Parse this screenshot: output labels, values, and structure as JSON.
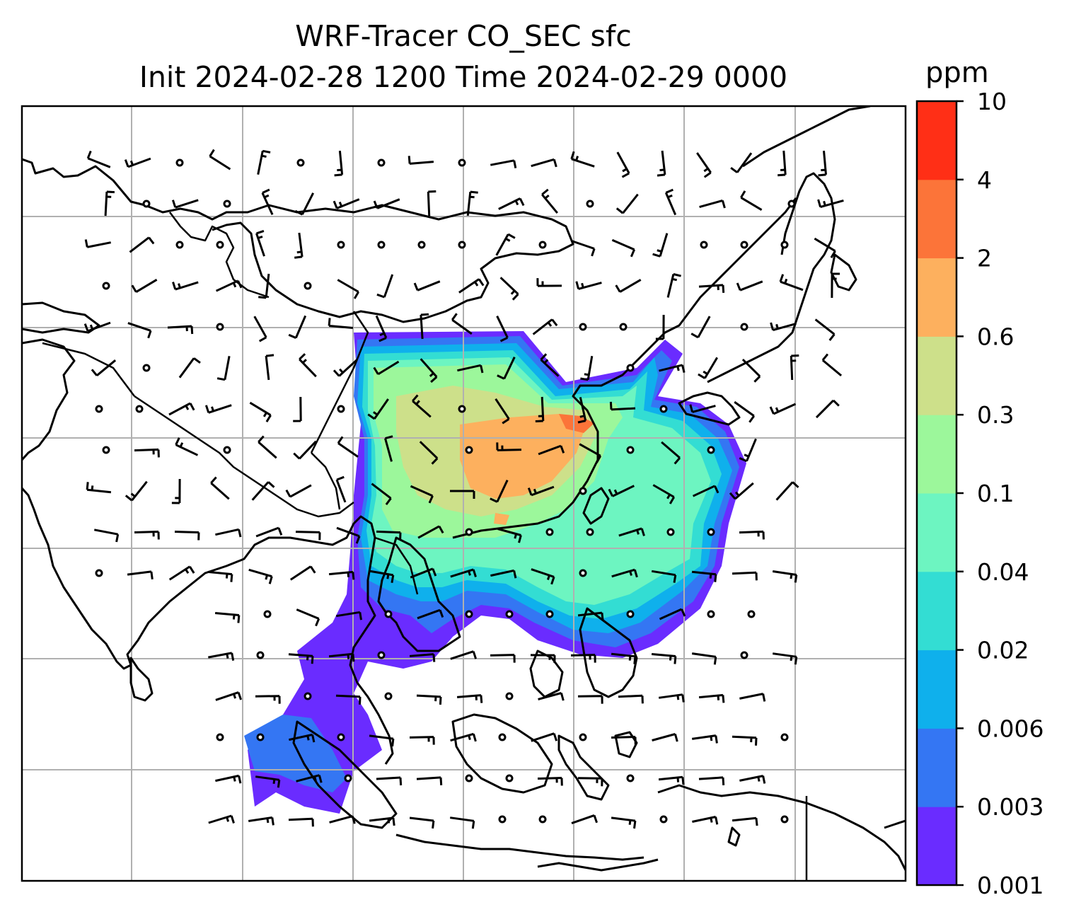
{
  "title_line1": "WRF-Tracer CO_SEC sfc",
  "title_line2": "Init 2024-02-28 1200 Time 2024-02-29 0000",
  "colorbar": {
    "unit": "ppm",
    "levels": [
      "0.001",
      "0.003",
      "0.006",
      "0.02",
      "0.04",
      "0.1",
      "0.3",
      "0.6",
      "2",
      "4",
      "10"
    ],
    "colors": [
      "#6a2cff",
      "#3476f3",
      "#0fb0ec",
      "#33ddd3",
      "#6df5c1",
      "#9cf79b",
      "#cde08a",
      "#fdb05e",
      "#fc7439",
      "#ff2f16"
    ]
  },
  "map": {
    "field": "CO_SEC surface tracer concentration",
    "overlays": [
      "coastlines",
      "country borders",
      "wind barbs",
      "calm-wind circles",
      "lat/lon gridlines"
    ],
    "frame_color": "#000000",
    "grid_color": "#b0b0b0"
  }
}
